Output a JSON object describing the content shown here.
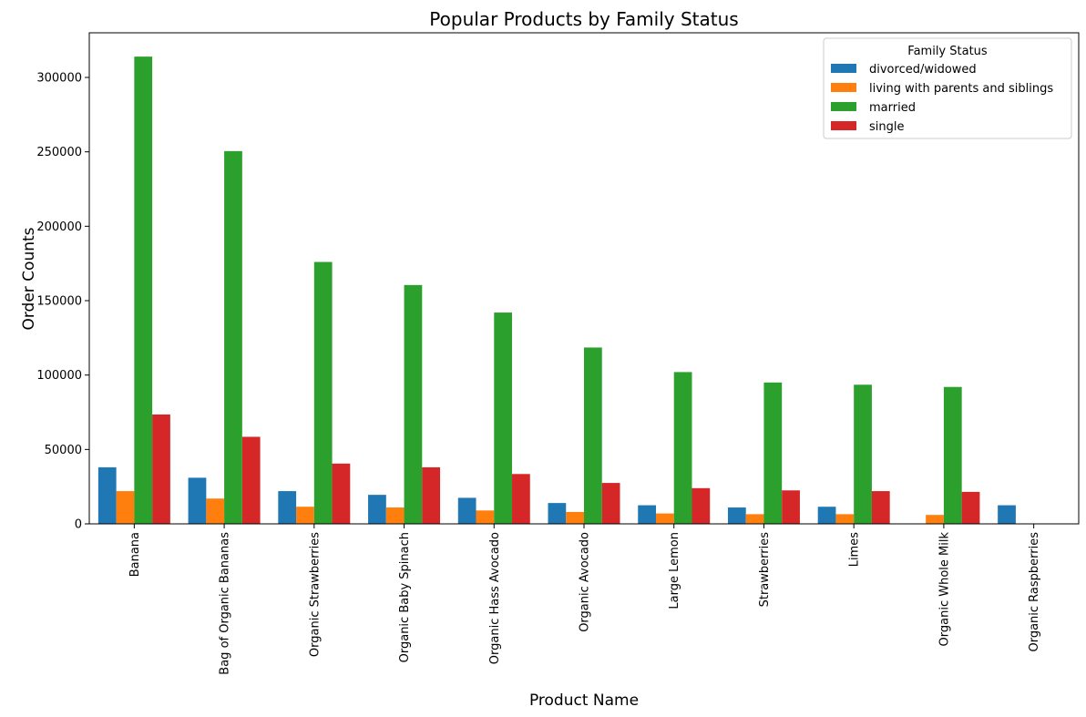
{
  "chart_data": {
    "type": "bar",
    "title": "Popular Products by Family Status",
    "xlabel": "Product Name",
    "ylabel": "Order Counts",
    "ylim": [
      0,
      330000
    ],
    "yticks": [
      0,
      50000,
      100000,
      150000,
      200000,
      250000,
      300000
    ],
    "ytick_labels": [
      "0",
      "50000",
      "100000",
      "150000",
      "200000",
      "250000",
      "300000"
    ],
    "categories": [
      "Banana",
      "Bag of Organic Bananas",
      "Organic Strawberries",
      "Organic Baby Spinach",
      "Organic Hass Avocado",
      "Organic Avocado",
      "Large Lemon",
      "Strawberries",
      "Limes",
      "Organic Whole Milk",
      "Organic Raspberries"
    ],
    "legend": {
      "title": "Family Status",
      "position": "top-right"
    },
    "grid": false,
    "series": [
      {
        "name": "divorced/widowed",
        "color": "#1f77b4",
        "values": [
          38000,
          31000,
          22000,
          19500,
          17500,
          14000,
          12500,
          11000,
          11500,
          0,
          12500
        ]
      },
      {
        "name": "living with parents and siblings",
        "color": "#ff7f0e",
        "values": [
          22000,
          17000,
          11500,
          11000,
          9000,
          8000,
          7000,
          6500,
          6500,
          6000,
          0
        ]
      },
      {
        "name": "married",
        "color": "#2ca02c",
        "values": [
          314000,
          250500,
          176000,
          160500,
          142000,
          118500,
          102000,
          95000,
          93500,
          92000,
          0
        ]
      },
      {
        "name": "single",
        "color": "#d62728",
        "values": [
          73500,
          58500,
          40500,
          38000,
          33500,
          27500,
          24000,
          22500,
          22000,
          21500,
          0
        ]
      }
    ]
  }
}
